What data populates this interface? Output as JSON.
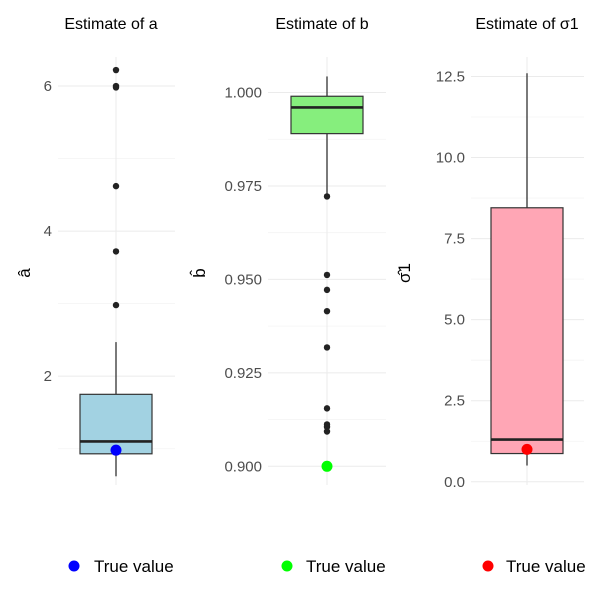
{
  "chart_data": [
    {
      "type": "box",
      "title": "Estimate of a",
      "ylabel": "â",
      "ylim": [
        0.5,
        6.4
      ],
      "ticks": [
        2,
        4,
        6
      ],
      "tick_labels": [
        "2",
        "4",
        "6"
      ],
      "box": {
        "min": 0.62,
        "q1": 0.93,
        "median": 1.1,
        "q3": 1.75,
        "max": 2.47
      },
      "outliers": [
        6.22,
        6.0,
        5.98,
        4.62,
        3.72,
        2.98
      ],
      "true_value": 0.98,
      "fill_color": "#a2d2e2",
      "true_color": "#0000ff",
      "legend_label": "True value"
    },
    {
      "type": "box",
      "title": "Estimate of b",
      "ylabel": "b̂",
      "ylim": [
        0.895,
        1.0095
      ],
      "ticks": [
        0.9,
        0.925,
        0.95,
        0.975,
        1.0
      ],
      "tick_labels": [
        "0.900",
        "0.925",
        "0.950",
        "0.975",
        "1.000"
      ],
      "box": {
        "min": 0.9725,
        "q1": 0.989,
        "median": 0.996,
        "q3": 0.999,
        "max": 1.0043
      },
      "outliers": [
        0.9722,
        0.9512,
        0.9472,
        0.9415,
        0.9318,
        0.9155,
        0.9112,
        0.9105,
        0.9093
      ],
      "true_value": 0.9,
      "fill_color": "#86ee7d",
      "true_color": "#00ff00",
      "legend_label": "True value"
    },
    {
      "type": "box",
      "title": "Estimate of σ1",
      "ylabel": "σ̂1",
      "ylim": [
        -0.1,
        13.1
      ],
      "ticks": [
        0,
        2.5,
        5,
        7.5,
        10,
        12.5
      ],
      "tick_labels": [
        "0.0",
        "2.5",
        "5.0",
        "7.5",
        "10.0",
        "12.5"
      ],
      "box": {
        "min": 0.5,
        "q1": 0.87,
        "median": 1.3,
        "q3": 8.45,
        "max": 12.6
      },
      "outliers": [],
      "true_value": 1.0,
      "fill_color": "#ffa6b5",
      "true_color": "#ff0000",
      "legend_label": "True value"
    }
  ]
}
